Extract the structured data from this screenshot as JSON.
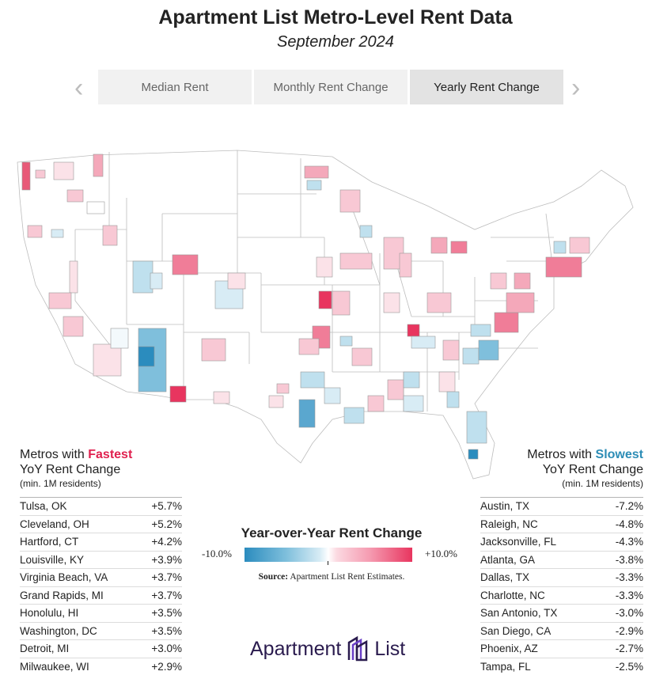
{
  "header": {
    "title": "Apartment List Metro-Level Rent Data",
    "subtitle": "September 2024"
  },
  "tabs": [
    {
      "label": "Median Rent",
      "active": false
    },
    {
      "label": "Monthly Rent Change",
      "active": false
    },
    {
      "label": "Yearly Rent Change",
      "active": true
    }
  ],
  "nav": {
    "prev_icon": "chevron-left-icon",
    "next_icon": "chevron-right-icon"
  },
  "fastest": {
    "heading_prefix": "Metros with ",
    "heading_accent": "Fastest",
    "heading_line2": "YoY Rent Change",
    "note": "(min. 1M residents)",
    "accent_color": "#e0214f",
    "rows": [
      {
        "metro": "Tulsa, OK",
        "value": "+5.7%"
      },
      {
        "metro": "Cleveland, OH",
        "value": "+5.2%"
      },
      {
        "metro": "Hartford, CT",
        "value": "+4.2%"
      },
      {
        "metro": "Louisville, KY",
        "value": "+3.9%"
      },
      {
        "metro": "Virginia Beach, VA",
        "value": "+3.7%"
      },
      {
        "metro": "Grand Rapids, MI",
        "value": "+3.7%"
      },
      {
        "metro": "Honolulu, HI",
        "value": "+3.5%"
      },
      {
        "metro": "Washington, DC",
        "value": "+3.5%"
      },
      {
        "metro": "Detroit, MI",
        "value": "+3.0%"
      },
      {
        "metro": "Milwaukee, WI",
        "value": "+2.9%"
      }
    ]
  },
  "slowest": {
    "heading_prefix": "Metros with ",
    "heading_accent": "Slowest",
    "heading_line2": "YoY Rent Change",
    "note": "(min. 1M residents)",
    "accent_color": "#2d8db6",
    "rows": [
      {
        "metro": "Austin, TX",
        "value": "-7.2%"
      },
      {
        "metro": "Raleigh, NC",
        "value": "-4.8%"
      },
      {
        "metro": "Jacksonville, FL",
        "value": "-4.3%"
      },
      {
        "metro": "Atlanta, GA",
        "value": "-3.8%"
      },
      {
        "metro": "Dallas, TX",
        "value": "-3.3%"
      },
      {
        "metro": "Charlotte, NC",
        "value": "-3.3%"
      },
      {
        "metro": "San Antonio, TX",
        "value": "-3.0%"
      },
      {
        "metro": "San Diego, CA",
        "value": "-2.9%"
      },
      {
        "metro": "Phoenix, AZ",
        "value": "-2.7%"
      },
      {
        "metro": "Tampa, FL",
        "value": "-2.5%"
      }
    ]
  },
  "legend": {
    "title": "Year-over-Year Rent Change",
    "min_label": "-10.0%",
    "max_label": "+10.0%",
    "scale_colors": [
      "#2b8cbe",
      "#ffffff",
      "#e8355f"
    ]
  },
  "source": {
    "label": "Source:",
    "text": "Apartment List Rent Estimates."
  },
  "logo": {
    "text_left": "Apartment",
    "text_right": "List",
    "icon": "building-logo-icon"
  }
}
